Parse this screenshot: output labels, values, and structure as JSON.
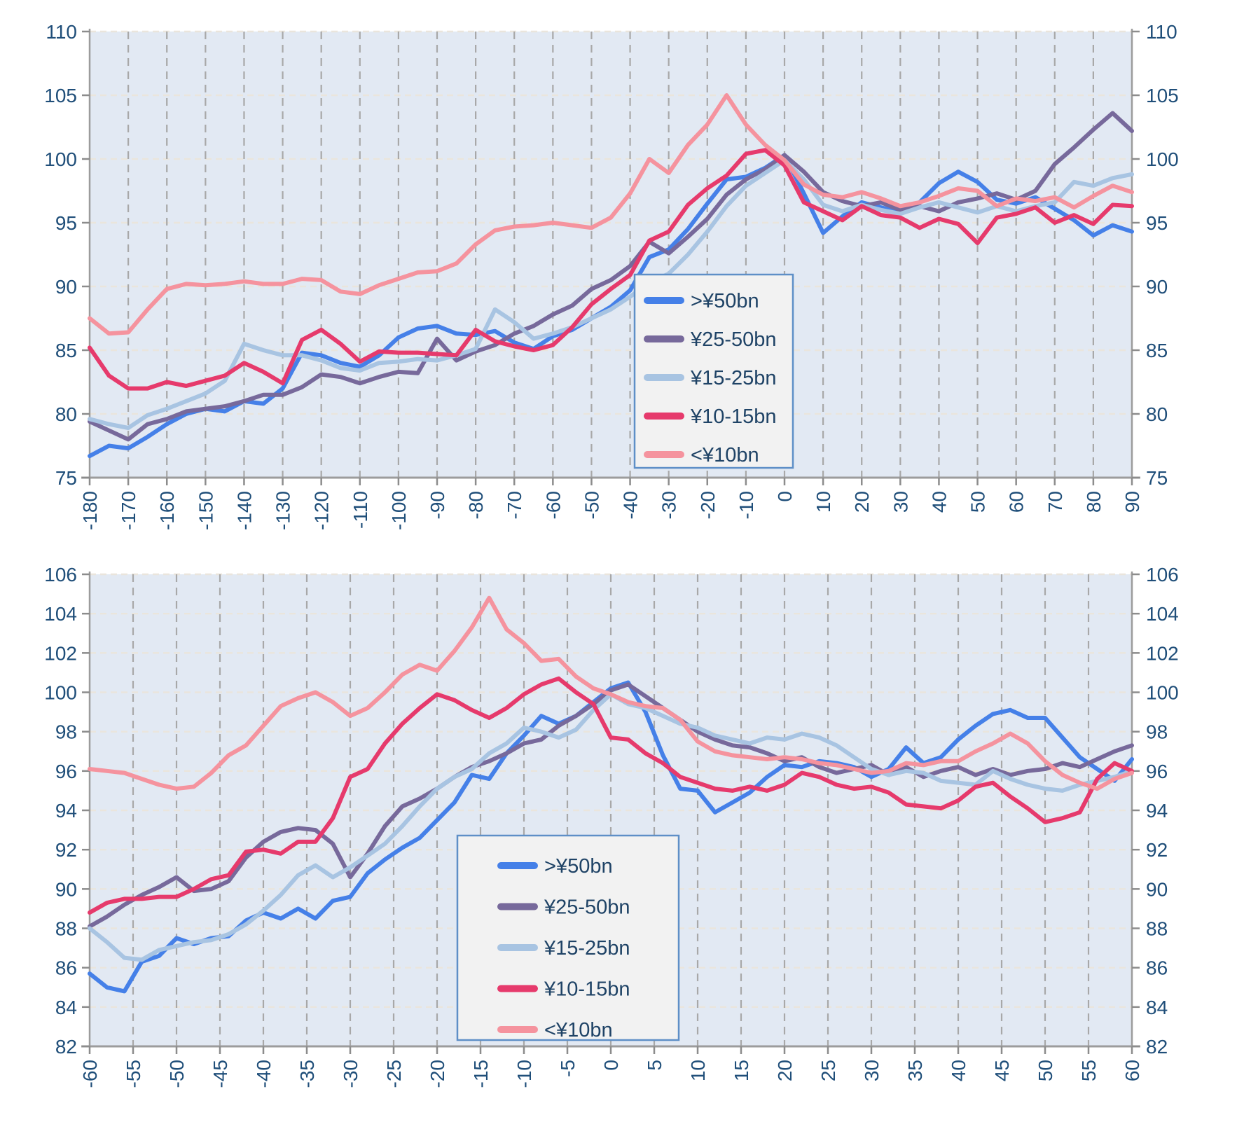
{
  "colors": {
    "page_bg": "#ffffff",
    "plot_bg": "#E2E9F3",
    "v_grid": "#A8A8A8",
    "h_grid": "#EAE5DC",
    "axis_line": "#9C9C9C",
    "tick_mark": "#8C8C8C",
    "tick_label": "#1F4E79",
    "legend_bg": "#F2F2F2",
    "legend_border": "#5E8FC7",
    "legend_text": "#1F4366",
    "series_blue": "#4580E8",
    "series_purple": "#77699B",
    "series_lightblue": "#A8C4E2",
    "series_crimson": "#E63A6C",
    "series_salmon": "#F5939E"
  },
  "legend": {
    "items": [
      {
        "label": ">¥50bn",
        "color": "#4580E8"
      },
      {
        "label": "¥25-50bn",
        "color": "#77699B"
      },
      {
        "label": "¥15-25bn",
        "color": "#A8C4E2"
      },
      {
        "label": "¥10-15bn",
        "color": "#E63A6C"
      },
      {
        "label": "<¥10bn",
        "color": "#F5939E"
      }
    ]
  },
  "chart_data": [
    {
      "type": "line",
      "title": "",
      "xlabel": "",
      "ylabel": "",
      "xlim": [
        -180,
        90
      ],
      "ylim": [
        75,
        110
      ],
      "x_ticks": [
        -180,
        -170,
        -160,
        -150,
        -140,
        -130,
        -120,
        -110,
        -100,
        -90,
        -80,
        -70,
        -60,
        -50,
        -40,
        -30,
        -20,
        -10,
        0,
        10,
        20,
        30,
        40,
        50,
        60,
        70,
        80,
        90
      ],
      "y_ticks": [
        75,
        80,
        85,
        90,
        95,
        100,
        105,
        110
      ],
      "grid": true,
      "legend_position": "center",
      "x": [
        -180,
        -175,
        -170,
        -165,
        -160,
        -155,
        -150,
        -145,
        -140,
        -135,
        -130,
        -125,
        -120,
        -115,
        -110,
        -105,
        -100,
        -95,
        -90,
        -85,
        -80,
        -75,
        -70,
        -65,
        -60,
        -55,
        -50,
        -45,
        -40,
        -35,
        -30,
        -25,
        -20,
        -15,
        -10,
        -5,
        0,
        5,
        10,
        15,
        20,
        25,
        30,
        35,
        40,
        45,
        50,
        55,
        60,
        65,
        70,
        75,
        80,
        85,
        90
      ],
      "series": [
        {
          "name": ">¥50bn",
          "color": "#4580E8",
          "values": [
            76.7,
            77.5,
            77.3,
            78.2,
            79.2,
            80.0,
            80.4,
            80.2,
            81.0,
            80.8,
            82.0,
            84.8,
            84.6,
            84.0,
            83.7,
            84.6,
            86.0,
            86.7,
            86.9,
            86.3,
            86.2,
            86.5,
            85.6,
            85.1,
            86.1,
            86.6,
            87.5,
            88.4,
            89.7,
            92.3,
            92.9,
            94.5,
            96.5,
            98.4,
            98.6,
            99.3,
            100.3,
            97.3,
            94.2,
            95.5,
            96.6,
            96.2,
            95.8,
            96.6,
            98.1,
            99.0,
            98.2,
            96.8,
            96.5,
            97.0,
            96.1,
            95.2,
            94.0,
            94.8,
            94.3
          ]
        },
        {
          "name": "¥25-50bn",
          "color": "#77699B",
          "values": [
            79.4,
            78.7,
            78.0,
            79.2,
            79.6,
            80.2,
            80.4,
            80.6,
            81.0,
            81.5,
            81.5,
            82.1,
            83.1,
            82.9,
            82.4,
            82.9,
            83.3,
            83.2,
            85.9,
            84.2,
            84.9,
            85.4,
            86.3,
            86.9,
            87.8,
            88.5,
            89.8,
            90.5,
            91.6,
            93.5,
            92.6,
            93.9,
            95.3,
            97.2,
            98.4,
            99.2,
            100.3,
            99.0,
            97.4,
            96.7,
            96.3,
            96.6,
            96.0,
            96.3,
            95.9,
            96.6,
            96.9,
            97.3,
            96.8,
            97.5,
            99.6,
            100.9,
            102.3,
            103.6,
            102.2
          ]
        },
        {
          "name": "¥15-25bn",
          "color": "#A8C4E2",
          "values": [
            79.6,
            79.2,
            78.9,
            79.9,
            80.4,
            81.0,
            81.6,
            82.6,
            85.5,
            85.0,
            84.6,
            84.6,
            84.2,
            83.6,
            83.4,
            84.0,
            84.1,
            84.3,
            84.2,
            84.6,
            85.1,
            88.2,
            87.2,
            85.9,
            86.3,
            86.8,
            87.5,
            88.2,
            89.2,
            90.3,
            91.0,
            92.5,
            94.3,
            96.3,
            97.9,
            98.9,
            99.9,
            98.4,
            96.4,
            95.9,
            96.4,
            96.0,
            95.7,
            96.2,
            96.6,
            96.2,
            95.8,
            96.3,
            95.9,
            96.3,
            96.6,
            98.2,
            97.9,
            98.5,
            98.8
          ]
        },
        {
          "name": "¥10-15bn",
          "color": "#E63A6C",
          "values": [
            85.2,
            83.0,
            82.0,
            82.0,
            82.5,
            82.2,
            82.6,
            83.0,
            84.0,
            83.3,
            82.4,
            85.8,
            86.6,
            85.5,
            84.1,
            84.9,
            84.8,
            84.8,
            84.7,
            84.6,
            86.6,
            85.7,
            85.3,
            85.0,
            85.4,
            86.8,
            88.6,
            89.8,
            90.9,
            93.6,
            94.3,
            96.4,
            97.7,
            98.7,
            100.4,
            100.7,
            99.5,
            96.6,
            95.9,
            95.2,
            96.3,
            95.6,
            95.4,
            94.6,
            95.3,
            94.9,
            93.4,
            95.4,
            95.7,
            96.2,
            95.0,
            95.6,
            94.9,
            96.4,
            96.3
          ]
        },
        {
          "name": "<¥10bn",
          "color": "#F5939E",
          "values": [
            87.5,
            86.3,
            86.4,
            88.2,
            89.8,
            90.2,
            90.1,
            90.2,
            90.4,
            90.2,
            90.2,
            90.6,
            90.5,
            89.6,
            89.4,
            90.1,
            90.6,
            91.1,
            91.2,
            91.8,
            93.3,
            94.4,
            94.7,
            94.8,
            95.0,
            94.8,
            94.6,
            95.4,
            97.3,
            100.0,
            98.9,
            101.1,
            102.7,
            105.0,
            102.7,
            101.1,
            99.9,
            98.0,
            97.2,
            97.0,
            97.4,
            96.9,
            96.3,
            96.6,
            97.1,
            97.7,
            97.5,
            96.3,
            96.9,
            96.7,
            97.0,
            96.2,
            97.1,
            97.9,
            97.4
          ]
        }
      ]
    },
    {
      "type": "line",
      "title": "",
      "xlabel": "",
      "ylabel": "",
      "xlim": [
        -60,
        60
      ],
      "ylim": [
        82,
        106
      ],
      "x_ticks": [
        -60,
        -55,
        -50,
        -45,
        -40,
        -35,
        -30,
        -25,
        -20,
        -15,
        -10,
        -5,
        0,
        5,
        10,
        15,
        20,
        25,
        30,
        35,
        40,
        45,
        50,
        55,
        60
      ],
      "y_ticks": [
        82,
        84,
        86,
        88,
        90,
        92,
        94,
        96,
        98,
        100,
        102,
        104,
        106
      ],
      "grid": true,
      "legend_position": "center",
      "x": [
        -60,
        -58,
        -56,
        -54,
        -52,
        -50,
        -48,
        -46,
        -44,
        -42,
        -40,
        -38,
        -36,
        -34,
        -32,
        -30,
        -28,
        -26,
        -24,
        -22,
        -20,
        -18,
        -16,
        -14,
        -12,
        -10,
        -8,
        -6,
        -4,
        -2,
        0,
        2,
        4,
        6,
        8,
        10,
        12,
        14,
        16,
        18,
        20,
        22,
        24,
        26,
        28,
        30,
        32,
        34,
        36,
        38,
        40,
        42,
        44,
        46,
        48,
        50,
        52,
        54,
        56,
        58,
        60
      ],
      "series": [
        {
          "name": ">¥50bn",
          "color": "#4580E8",
          "values": [
            85.7,
            85.0,
            84.8,
            86.3,
            86.6,
            87.5,
            87.2,
            87.5,
            87.6,
            88.4,
            88.8,
            88.5,
            89.0,
            88.5,
            89.4,
            89.6,
            90.8,
            91.5,
            92.1,
            92.6,
            93.5,
            94.4,
            95.8,
            95.6,
            96.9,
            97.8,
            98.8,
            98.4,
            98.8,
            99.5,
            100.2,
            100.5,
            99.0,
            96.8,
            95.1,
            95.0,
            93.9,
            94.4,
            94.9,
            95.7,
            96.3,
            96.2,
            96.5,
            96.4,
            96.2,
            95.7,
            96.1,
            97.2,
            96.4,
            96.7,
            97.6,
            98.3,
            98.9,
            99.1,
            98.7,
            98.7,
            97.7,
            96.7,
            96.1,
            95.5,
            96.6
          ]
        },
        {
          "name": "¥25-50bn",
          "color": "#77699B",
          "values": [
            88.1,
            88.6,
            89.2,
            89.7,
            90.1,
            90.6,
            89.9,
            90.0,
            90.4,
            91.6,
            92.4,
            92.9,
            93.1,
            93.0,
            92.3,
            90.6,
            91.8,
            93.2,
            94.2,
            94.6,
            95.1,
            95.7,
            96.2,
            96.5,
            96.9,
            97.4,
            97.6,
            98.3,
            98.8,
            99.4,
            100.1,
            100.4,
            99.8,
            99.2,
            98.6,
            98.0,
            97.6,
            97.3,
            97.2,
            96.9,
            96.5,
            96.7,
            96.2,
            95.9,
            96.1,
            96.3,
            95.8,
            96.2,
            95.7,
            96.0,
            96.2,
            95.8,
            96.1,
            95.8,
            96.0,
            96.1,
            96.4,
            96.2,
            96.6,
            97.0,
            97.3
          ]
        },
        {
          "name": "¥15-25bn",
          "color": "#A8C4E2",
          "values": [
            88.0,
            87.3,
            86.5,
            86.4,
            86.9,
            87.1,
            87.3,
            87.4,
            87.7,
            88.2,
            88.9,
            89.7,
            90.7,
            91.2,
            90.6,
            91.1,
            91.7,
            92.3,
            93.2,
            94.2,
            95.1,
            95.7,
            96.1,
            96.9,
            97.4,
            98.2,
            98.0,
            97.7,
            98.1,
            99.1,
            99.9,
            99.4,
            99.2,
            98.8,
            98.4,
            98.2,
            97.8,
            97.6,
            97.4,
            97.7,
            97.6,
            97.9,
            97.7,
            97.3,
            96.7,
            96.1,
            95.8,
            96.0,
            95.9,
            95.5,
            95.4,
            95.3,
            96.0,
            95.6,
            95.3,
            95.1,
            95.0,
            95.3,
            95.5,
            95.7,
            96.0
          ]
        },
        {
          "name": "¥10-15bn",
          "color": "#E63A6C",
          "values": [
            88.8,
            89.3,
            89.5,
            89.5,
            89.6,
            89.6,
            90.0,
            90.5,
            90.7,
            91.9,
            92.0,
            91.8,
            92.4,
            92.4,
            93.6,
            95.7,
            96.1,
            97.4,
            98.4,
            99.2,
            99.9,
            99.6,
            99.1,
            98.7,
            99.2,
            99.9,
            100.4,
            100.7,
            100.0,
            99.4,
            97.7,
            97.6,
            96.9,
            96.4,
            95.7,
            95.4,
            95.1,
            95.0,
            95.2,
            95.0,
            95.3,
            95.9,
            95.7,
            95.3,
            95.1,
            95.2,
            94.9,
            94.3,
            94.2,
            94.1,
            94.5,
            95.2,
            95.4,
            94.7,
            94.1,
            93.4,
            93.6,
            93.9,
            95.6,
            96.4,
            96.0
          ]
        },
        {
          "name": "<¥10bn",
          "color": "#F5939E",
          "values": [
            96.1,
            96.0,
            95.9,
            95.6,
            95.3,
            95.1,
            95.2,
            95.9,
            96.8,
            97.3,
            98.3,
            99.3,
            99.7,
            100.0,
            99.5,
            98.8,
            99.2,
            100.0,
            100.9,
            101.4,
            101.1,
            102.1,
            103.3,
            104.8,
            103.2,
            102.5,
            101.6,
            101.7,
            100.8,
            100.2,
            99.9,
            99.5,
            99.3,
            99.2,
            98.6,
            97.5,
            97.0,
            96.8,
            96.7,
            96.6,
            96.7,
            96.6,
            96.4,
            96.3,
            96.1,
            95.9,
            96.0,
            96.4,
            96.3,
            96.5,
            96.5,
            97.0,
            97.4,
            97.9,
            97.4,
            96.5,
            95.8,
            95.4,
            95.1,
            95.6,
            95.9
          ]
        }
      ]
    }
  ]
}
